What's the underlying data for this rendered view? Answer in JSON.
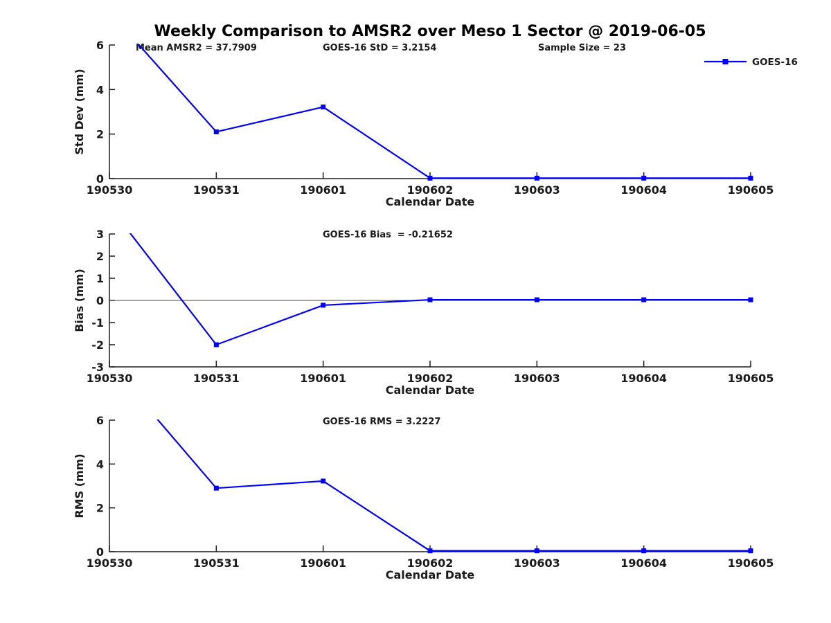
{
  "figure": {
    "title": "Weekly Comparison to AMSR2 over Meso 1 Sector @ 2019-06-05",
    "series_color": "#0000ff",
    "axis_color": "#1a1a1a",
    "zero_line_color": "#404040",
    "legend": {
      "label": "GOES-16",
      "position": "top-right",
      "marker": "filled-square",
      "color": "#0000ff"
    }
  },
  "chart_data": [
    {
      "type": "line",
      "xlabel": "Calendar Date",
      "ylabel": "Std Dev (mm)",
      "categories": [
        "190530",
        "190531",
        "190601",
        "190602",
        "190603",
        "190604",
        "190605"
      ],
      "series": [
        {
          "name": "GOES-16",
          "values": [
            7.5,
            2.1,
            3.2154,
            0.02,
            0.02,
            0.02,
            0.02
          ]
        }
      ],
      "ylim": [
        0,
        6
      ],
      "yticks": [
        0,
        2,
        4,
        6
      ],
      "annotations": [
        "Mean AMSR2 = 37.7909",
        "GOES-16 StD = 3.2154",
        "Sample Size = 23"
      ],
      "legend_visible": true,
      "zero_line": false,
      "grid": false,
      "note": "First point (190530, ~7.5 estimated) exceeds y-axis range and is clipped at the top of the plot; no marker shown for it."
    },
    {
      "type": "line",
      "xlabel": "Calendar Date",
      "ylabel": "Bias (mm)",
      "categories": [
        "190530",
        "190531",
        "190601",
        "190602",
        "190603",
        "190604",
        "190605"
      ],
      "series": [
        {
          "name": "GOES-16",
          "values": [
            4.25,
            -2.0,
            -0.21652,
            0.03,
            0.03,
            0.03,
            0.03
          ]
        }
      ],
      "ylim": [
        -3,
        3
      ],
      "yticks": [
        -3,
        -2,
        -1,
        0,
        1,
        2,
        3
      ],
      "annotations": [
        "GOES-16 Bias  = -0.21652"
      ],
      "legend_visible": false,
      "zero_line": true,
      "grid": false,
      "note": "First point (190530, ~4.25 estimated) exceeds y-axis range and is clipped at the top of the plot; no marker shown for it."
    },
    {
      "type": "line",
      "xlabel": "Calendar Date",
      "ylabel": "RMS (mm)",
      "categories": [
        "190530",
        "190531",
        "190601",
        "190602",
        "190603",
        "190604",
        "190605"
      ],
      "series": [
        {
          "name": "GOES-16",
          "values": [
            8.6,
            2.9,
            3.2227,
            0.04,
            0.04,
            0.04,
            0.04
          ]
        }
      ],
      "ylim": [
        0,
        6
      ],
      "yticks": [
        0,
        2,
        4,
        6
      ],
      "annotations": [
        "GOES-16 RMS = 3.2227"
      ],
      "legend_visible": false,
      "zero_line": false,
      "grid": false,
      "note": "First point (190530, ~8.6 estimated) exceeds y-axis range and is clipped at the top of the plot; no marker shown for it."
    }
  ]
}
